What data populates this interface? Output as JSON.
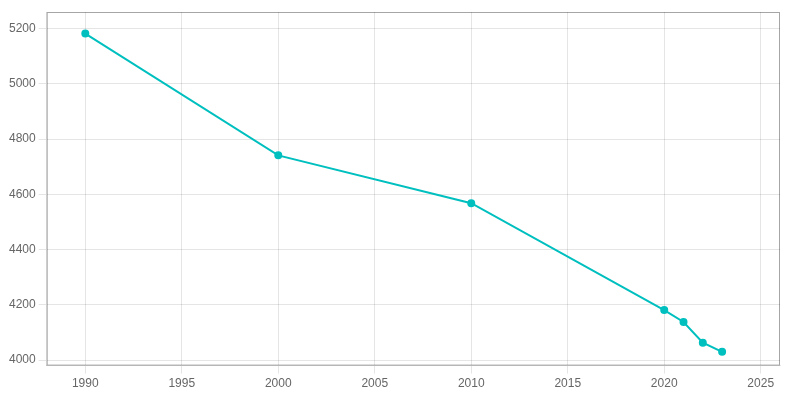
{
  "chart_data": {
    "type": "line",
    "x": [
      1990,
      2000,
      2010,
      2020,
      2021,
      2022,
      2023
    ],
    "values": [
      5182,
      4741,
      4568,
      4181,
      4138,
      4063,
      4030
    ],
    "color": "#00BFBF",
    "marker": "circle",
    "line_style": "solid",
    "xlim": [
      1988,
      2026
    ],
    "xticks": [
      1990,
      1995,
      2000,
      2005,
      2010,
      2015,
      2020,
      2025
    ],
    "ylim": [
      3980,
      5260
    ],
    "yticks": [
      4000,
      4200,
      4400,
      4600,
      4800,
      5000,
      5200
    ],
    "grid": true
  }
}
